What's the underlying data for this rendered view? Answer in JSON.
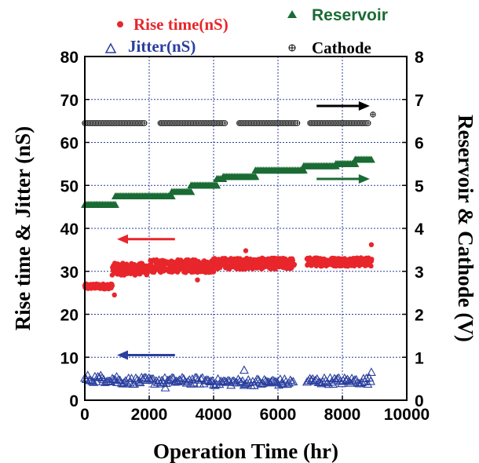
{
  "chart_data": {
    "type": "scatter",
    "title": "",
    "xlabel": "Operation Time (hr)",
    "ylabel_left": "Rise time & Jitter (nS)",
    "ylabel_right": "Reservoir & Cathode (V)",
    "xlim": [
      0,
      10000
    ],
    "ylim_left": [
      0,
      80
    ],
    "ylim_right": [
      0,
      8
    ],
    "x_ticks": [
      "0",
      "2000",
      "4000",
      "6000",
      "8000",
      "10000"
    ],
    "y_left_ticks": [
      "0",
      "10",
      "20",
      "30",
      "40",
      "50",
      "60",
      "70",
      "80"
    ],
    "y_right_ticks": [
      "0",
      "1",
      "2",
      "3",
      "4",
      "5",
      "6",
      "7",
      "8"
    ],
    "grid": true,
    "legend_position": "top",
    "series": [
      {
        "name": "Rise time(nS)",
        "axis": "left",
        "color": "#e8262b",
        "marker": "circle",
        "segments": [
          {
            "x_start": 0,
            "x_end": 850,
            "y": 26.5,
            "spread": 0.6
          },
          {
            "x_start": 850,
            "x_end": 2000,
            "y": 30.5,
            "spread": 1.4
          },
          {
            "x_start": 2000,
            "x_end": 4000,
            "y": 31.2,
            "spread": 1.5
          },
          {
            "x_start": 4000,
            "x_end": 6500,
            "y": 31.8,
            "spread": 1.3
          },
          {
            "x_start": 6900,
            "x_end": 8900,
            "y": 32.2,
            "spread": 1.0
          }
        ],
        "outliers": [
          [
            100,
            26.0
          ],
          [
            920,
            24.5
          ],
          [
            5000,
            34.8
          ],
          [
            8900,
            36.2
          ],
          [
            3500,
            28.0
          ]
        ]
      },
      {
        "name": "Jitter(nS)",
        "axis": "left",
        "color": "#2a3f9e",
        "marker": "triangle-open",
        "segments": [
          {
            "x_start": 0,
            "x_end": 1000,
            "y": 5.0,
            "spread": 0.9
          },
          {
            "x_start": 1000,
            "x_end": 4000,
            "y": 4.5,
            "spread": 0.8
          },
          {
            "x_start": 4000,
            "x_end": 6500,
            "y": 4.2,
            "spread": 0.8
          },
          {
            "x_start": 6900,
            "x_end": 8900,
            "y": 4.5,
            "spread": 0.8
          }
        ],
        "outliers": [
          [
            4950,
            7.0
          ],
          [
            8900,
            6.5
          ],
          [
            2500,
            2.9
          ]
        ]
      },
      {
        "name": "Reservoir",
        "axis": "right",
        "color": "#1a6b34",
        "marker": "triangle-filled",
        "segments": [
          {
            "x_start": 0,
            "x_end": 350,
            "y": 4.55
          },
          {
            "x_start": 350,
            "x_end": 950,
            "y": 4.55
          },
          {
            "x_start": 950,
            "x_end": 2700,
            "y": 4.75
          },
          {
            "x_start": 2700,
            "x_end": 3300,
            "y": 4.85
          },
          {
            "x_start": 3300,
            "x_end": 4100,
            "y": 5.0
          },
          {
            "x_start": 4100,
            "x_end": 4300,
            "y": 5.15
          },
          {
            "x_start": 4300,
            "x_end": 5300,
            "y": 5.2
          },
          {
            "x_start": 5300,
            "x_end": 6800,
            "y": 5.35
          },
          {
            "x_start": 6800,
            "x_end": 7800,
            "y": 5.45
          },
          {
            "x_start": 7800,
            "x_end": 8400,
            "y": 5.5
          },
          {
            "x_start": 8400,
            "x_end": 8900,
            "y": 5.6
          }
        ]
      },
      {
        "name": "Cathode",
        "axis": "right",
        "color": "#000000",
        "marker": "circle-plus",
        "segments": [
          {
            "x_start": 0,
            "x_end": 1850,
            "y": 6.45
          },
          {
            "x_start": 2350,
            "x_end": 4350,
            "y": 6.45
          },
          {
            "x_start": 4800,
            "x_end": 6600,
            "y": 6.45
          },
          {
            "x_start": 7000,
            "x_end": 8800,
            "y": 6.45
          }
        ],
        "outliers": [
          [
            8950,
            6.65
          ]
        ]
      }
    ],
    "annotations": [
      {
        "type": "arrow",
        "direction": "right",
        "color": "#000000",
        "x_from": 7200,
        "x_to": 8850,
        "y_right": 6.85
      },
      {
        "type": "arrow",
        "direction": "right",
        "color": "#1a6b34",
        "x_from": 7200,
        "x_to": 8850,
        "y_right": 5.15
      },
      {
        "type": "arrow",
        "direction": "left",
        "color": "#e8262b",
        "x_from": 2800,
        "x_to": 1000,
        "y_left": 37.5
      },
      {
        "type": "arrow",
        "direction": "left",
        "color": "#2a3f9e",
        "x_from": 2800,
        "x_to": 1000,
        "y_left": 10.5
      }
    ]
  }
}
